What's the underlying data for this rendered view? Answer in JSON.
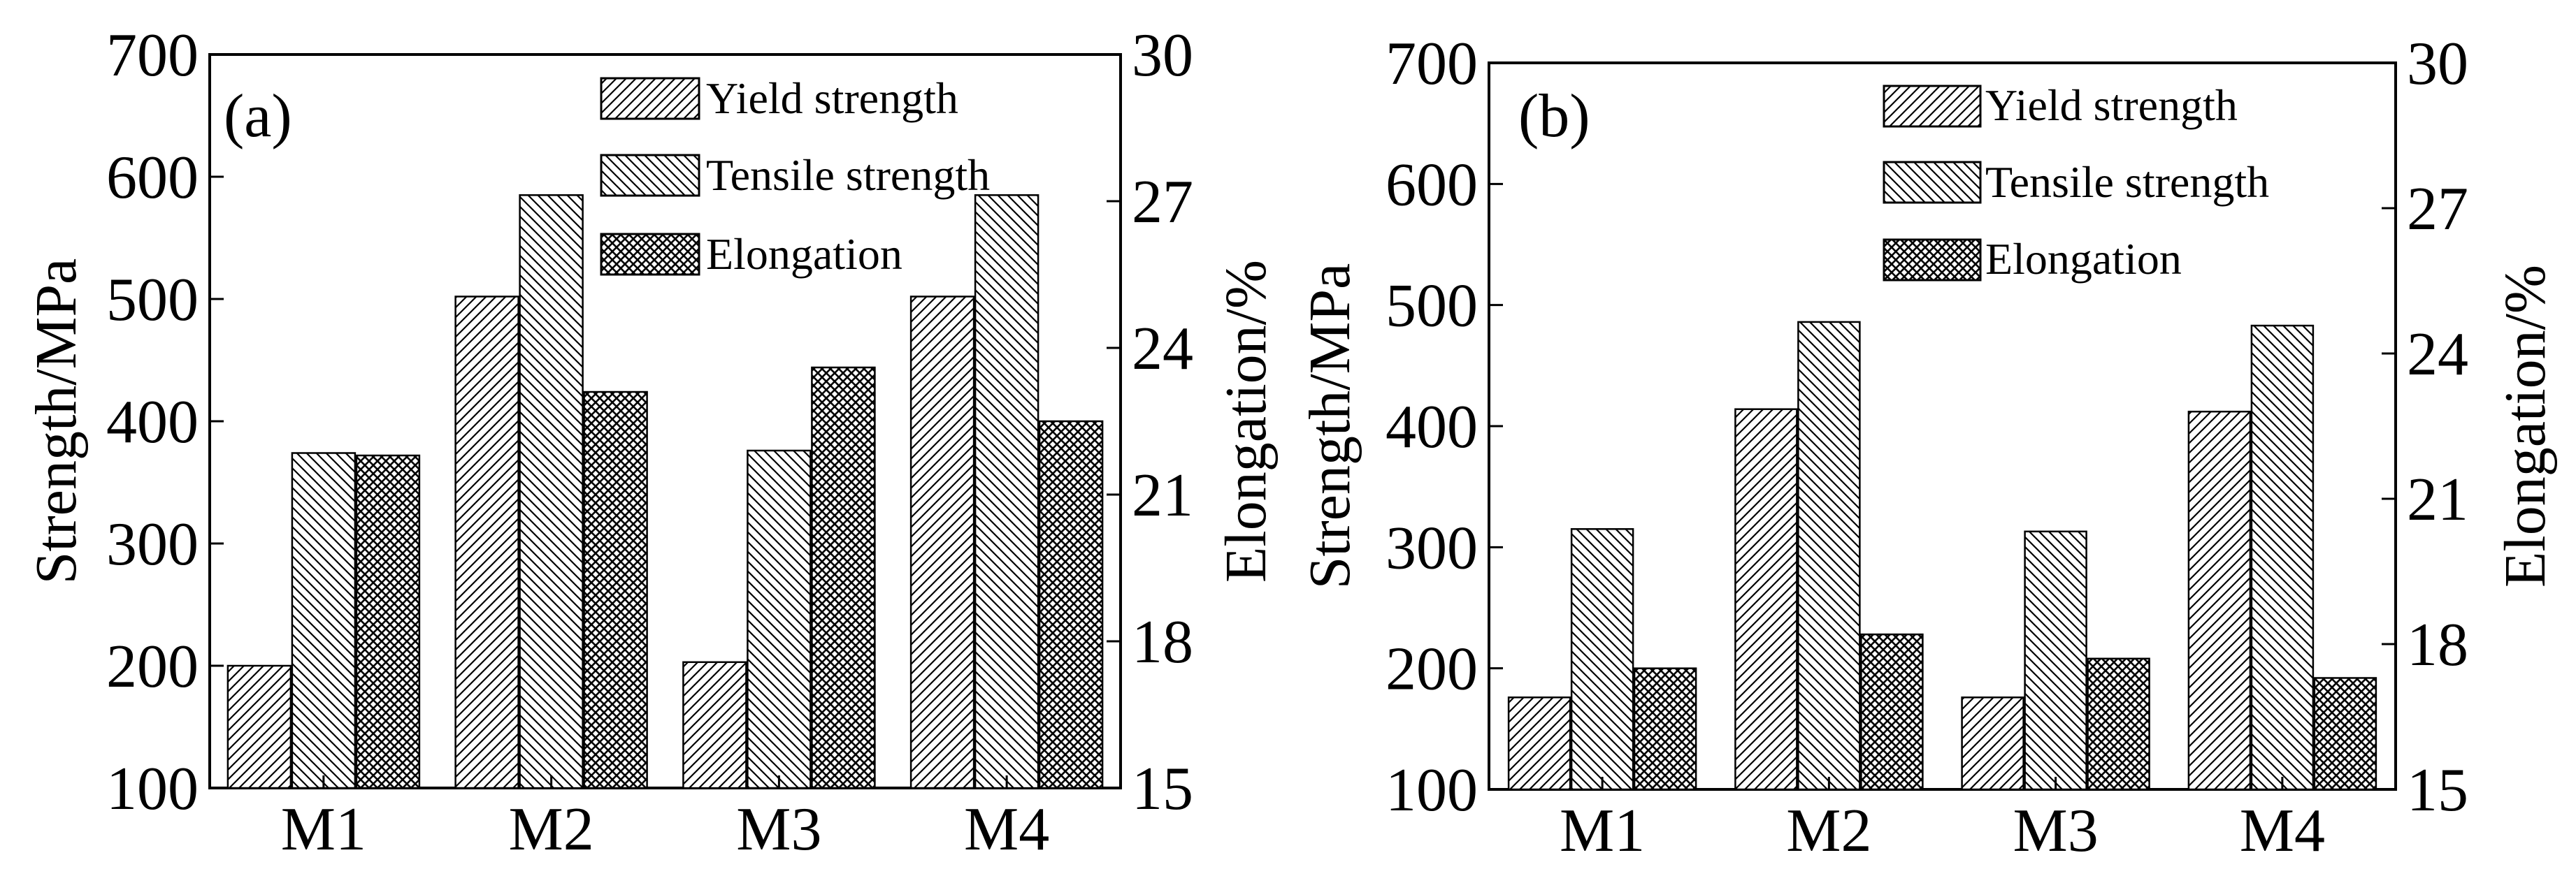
{
  "colors": {
    "ink": "#000000",
    "background": "#ffffff"
  },
  "legend_entries": [
    "Yield strength",
    "Tensile strength",
    "Elongation"
  ],
  "chart_data": [
    {
      "type": "bar",
      "panel_label": "(a)",
      "categories": [
        "M1",
        "M2",
        "M3",
        "M4"
      ],
      "ylabel": "Strength/MPa",
      "ylim": [
        100,
        700
      ],
      "yticks": [
        100,
        200,
        300,
        400,
        500,
        600,
        700
      ],
      "y2label": "Elongation/%",
      "y2lim": [
        15,
        30
      ],
      "y2ticks": [
        15,
        18,
        21,
        24,
        27,
        30
      ],
      "series": [
        {
          "name": "Yield strength",
          "axis": "left",
          "pattern": "hatch-fwd",
          "values": [
            200,
            502,
            203,
            502
          ]
        },
        {
          "name": "Tensile strength",
          "axis": "left",
          "pattern": "hatch-back",
          "values": [
            374,
            585,
            376,
            585
          ]
        },
        {
          "name": "Elongation",
          "axis": "right",
          "pattern": "crosshatch",
          "values": [
            21.8,
            23.1,
            23.6,
            22.5
          ]
        }
      ]
    },
    {
      "type": "bar",
      "panel_label": "(b)",
      "categories": [
        "M1",
        "M2",
        "M3",
        "M4"
      ],
      "ylabel": "Strength/MPa",
      "ylim": [
        100,
        700
      ],
      "yticks": [
        100,
        200,
        300,
        400,
        500,
        600,
        700
      ],
      "y2label": "Elongation/%",
      "y2lim": [
        15,
        30
      ],
      "y2ticks": [
        15,
        18,
        21,
        24,
        27,
        30
      ],
      "series": [
        {
          "name": "Yield strength",
          "axis": "left",
          "pattern": "hatch-fwd",
          "values": [
            176,
            414,
            176,
            412
          ]
        },
        {
          "name": "Tensile strength",
          "axis": "left",
          "pattern": "hatch-back",
          "values": [
            315,
            486,
            313,
            483
          ]
        },
        {
          "name": "Elongation",
          "axis": "right",
          "pattern": "crosshatch",
          "values": [
            17.5,
            18.2,
            17.7,
            17.3
          ]
        }
      ]
    }
  ]
}
